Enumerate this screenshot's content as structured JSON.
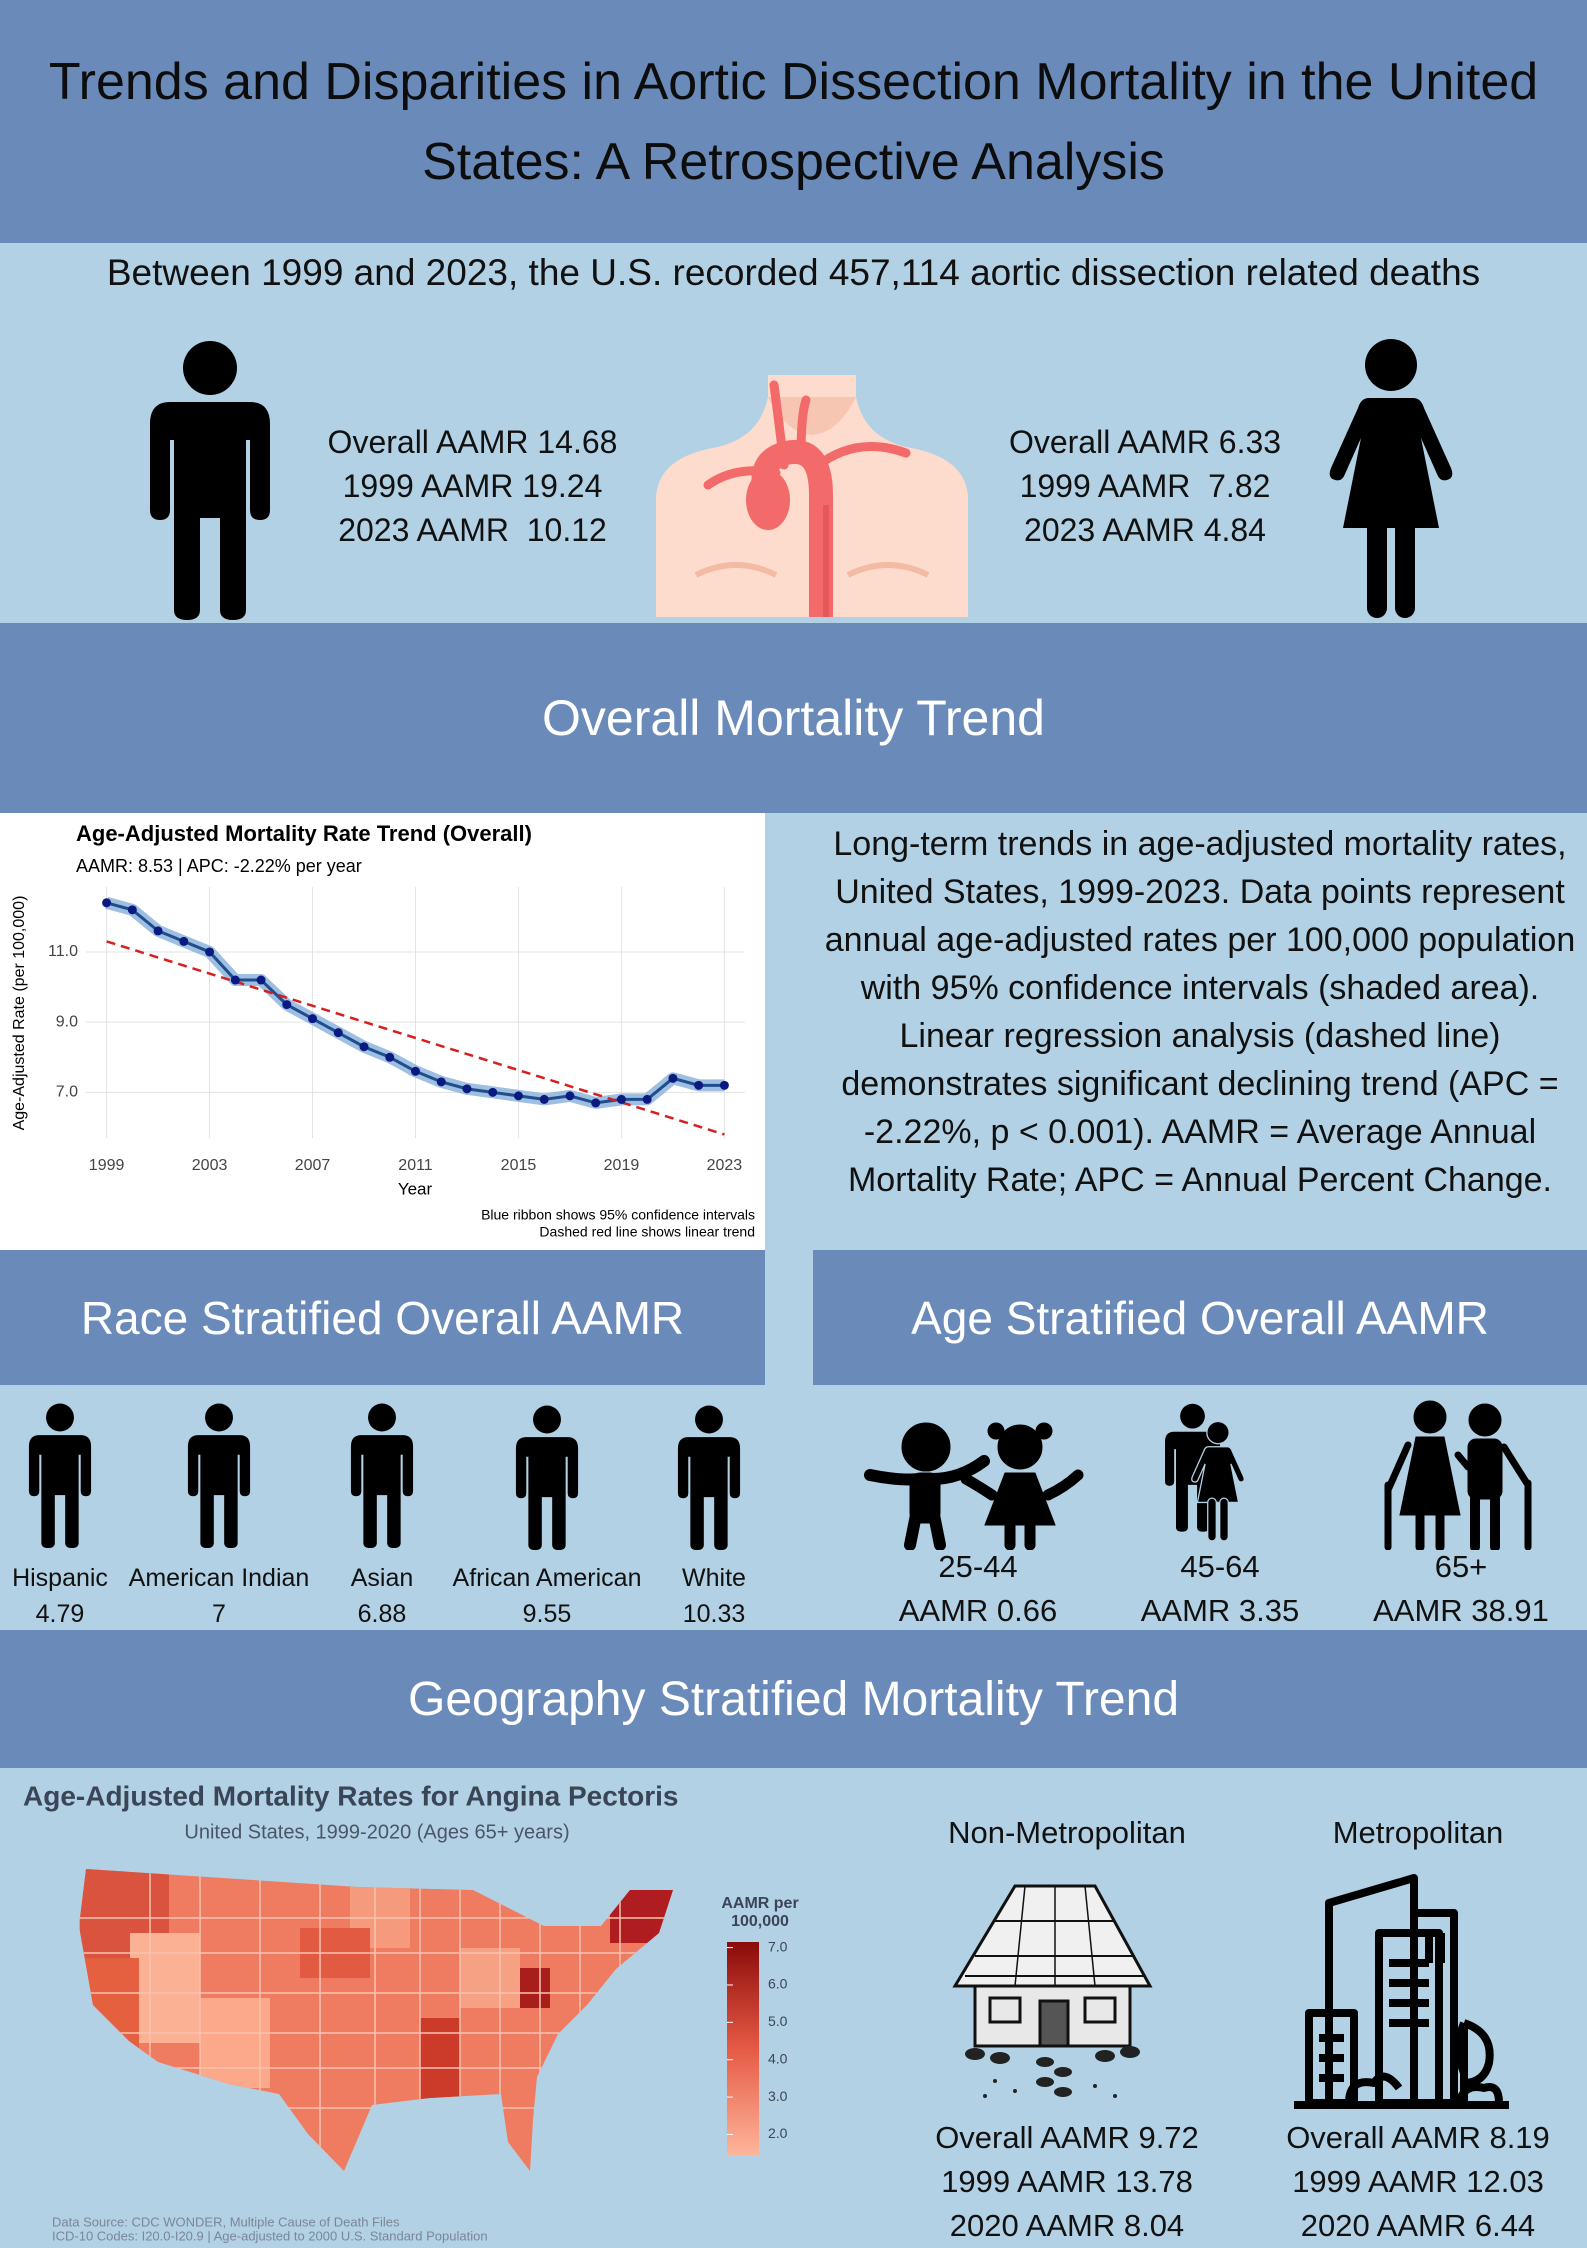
{
  "header": {
    "title": "Trends and Disparities in Aortic Dissection Mortality in the United States: A Retrospective Analysis"
  },
  "summary": "Between 1999 and 2023, the U.S. recorded 457,114 aortic dissection related deaths",
  "male": {
    "lines": [
      "Overall AAMR 14.68",
      "1999 AAMR 19.24",
      "2023 AAMR  10.12"
    ]
  },
  "female": {
    "lines": [
      "Overall AAMR 6.33",
      "1999 AAMR  7.82",
      "2023 AAMR 4.84"
    ]
  },
  "overall_section": {
    "title": "Overall Mortality Trend",
    "description": "Long-term trends in age-adjusted mortality rates, United States, 1999-2023. Data points represent annual age-adjusted rates per 100,000 population with 95% confidence intervals (shaded area). Linear regression analysis (dashed line) demonstrates significant declining trend (APC = -2.22%, p < 0.001). AAMR = Average Annual Mortality Rate; APC = Annual Percent Change."
  },
  "chart_data": {
    "type": "line",
    "title": "Age-Adjusted Mortality Rate Trend (Overall)",
    "subtitle": "AAMR: 8.53 | APC: -2.22% per year",
    "x_label": "Year",
    "y_label": "Age-Adjusted Rate (per 100,000)",
    "x": [
      1999,
      2000,
      2001,
      2002,
      2003,
      2004,
      2005,
      2006,
      2007,
      2008,
      2009,
      2010,
      2011,
      2012,
      2013,
      2014,
      2015,
      2016,
      2017,
      2018,
      2019,
      2020,
      2021,
      2022,
      2023
    ],
    "values": [
      12.4,
      12.2,
      11.6,
      11.3,
      11.0,
      10.2,
      10.2,
      9.5,
      9.1,
      8.7,
      8.3,
      8.0,
      7.6,
      7.3,
      7.1,
      7.0,
      6.9,
      6.8,
      6.9,
      6.7,
      6.8,
      6.8,
      7.4,
      7.2,
      7.2
    ],
    "color": "#1f4e8c",
    "point_color": "#0a1a80",
    "ribbon_color": "#8db4dd",
    "trend": {
      "values": [
        11.3,
        5.8
      ],
      "color": "#d62020"
    },
    "xlim": [
      1998.2,
      2023.8
    ],
    "ylim": [
      5.7,
      12.85
    ],
    "xticks": [
      1999,
      2003,
      2007,
      2011,
      2015,
      2019,
      2023
    ],
    "yticks": [
      {
        "value": 7,
        "label": "7.0"
      },
      {
        "value": 9,
        "label": "9.0"
      },
      {
        "value": 11,
        "label": "11.0"
      }
    ],
    "grid": true,
    "notes": [
      "Blue ribbon shows 95% confidence intervals",
      "Dashed red line shows linear trend"
    ]
  },
  "race": {
    "title": "Race Stratified Overall AAMR",
    "groups": [
      {
        "name": "Hispanic",
        "value": "4.79"
      },
      {
        "name": "American Indian",
        "value": "7"
      },
      {
        "name": "Asian",
        "value": "6.88"
      },
      {
        "name": "African American",
        "value": "9.55"
      },
      {
        "name": "White",
        "value": "10.33"
      }
    ]
  },
  "age": {
    "title": "Age Stratified Overall AAMR",
    "groups": [
      {
        "label": "25-44",
        "value": "AAMR 0.66"
      },
      {
        "label": "45-64",
        "value": "AAMR 3.35"
      },
      {
        "label": "65+",
        "value": "AAMR 38.91"
      }
    ]
  },
  "geography": {
    "title": "Geography Stratified Mortality Trend",
    "map": {
      "title": "Age-Adjusted Mortality Rates for Angina Pectoris",
      "subtitle": "United States, 1999-2020 (Ages 65+ years)",
      "legend_title": [
        "AAMR per",
        "100,000"
      ],
      "colorbar_lim": [
        1.45,
        7.15
      ],
      "colorbar_ticks": [
        {
          "value": 2,
          "label": "2.0"
        },
        {
          "value": 3,
          "label": "3.0"
        },
        {
          "value": 4,
          "label": "4.0"
        },
        {
          "value": 5,
          "label": "5.0"
        },
        {
          "value": 6,
          "label": "6.0"
        },
        {
          "value": 7,
          "label": "7.0"
        }
      ],
      "source": [
        "Data Source: CDC WONDER, Multiple Cause of Death Files",
        "ICD-10 Codes: I20.0-I20.9 | Age-adjusted to 2000 U.S. Standard Population"
      ]
    },
    "non_metropolitan": {
      "label": "Non-Metropolitan",
      "lines": [
        "Overall AAMR 9.72",
        "1999 AAMR 13.78",
        "2020 AAMR 8.04"
      ]
    },
    "metropolitan": {
      "label": "Metropolitan",
      "lines": [
        "Overall AAMR 8.19",
        "1999 AAMR 12.03",
        "2020 AAMR 6.44"
      ]
    }
  }
}
